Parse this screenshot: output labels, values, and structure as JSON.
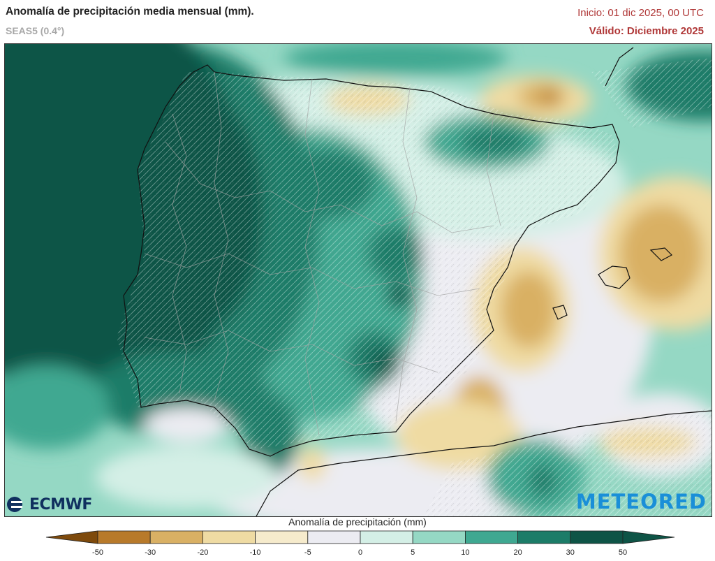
{
  "header": {
    "title": "Anomalía de precipitación media mensual (mm).",
    "model": "SEAS5 (0.4°)",
    "init": "Inicio: 01 dic 2025, 00 UTC",
    "valid": "Válido: Diciembre 2025"
  },
  "logos": {
    "left": "ECMWF",
    "right": "METEORED"
  },
  "legend": {
    "title": "Anomalía de precipitación (mm)",
    "ticks": [
      "-50",
      "-30",
      "-20",
      "-10",
      "-5",
      "0",
      "5",
      "10",
      "20",
      "30",
      "50"
    ],
    "colors": [
      "#7e4a0c",
      "#b87a2a",
      "#d9b064",
      "#efdba3",
      "#f6ebcc",
      "#ececf2",
      "#d4efe6",
      "#95d8c4",
      "#3fa891",
      "#1c7c68",
      "#0e5446",
      "#0e5446"
    ]
  }
}
